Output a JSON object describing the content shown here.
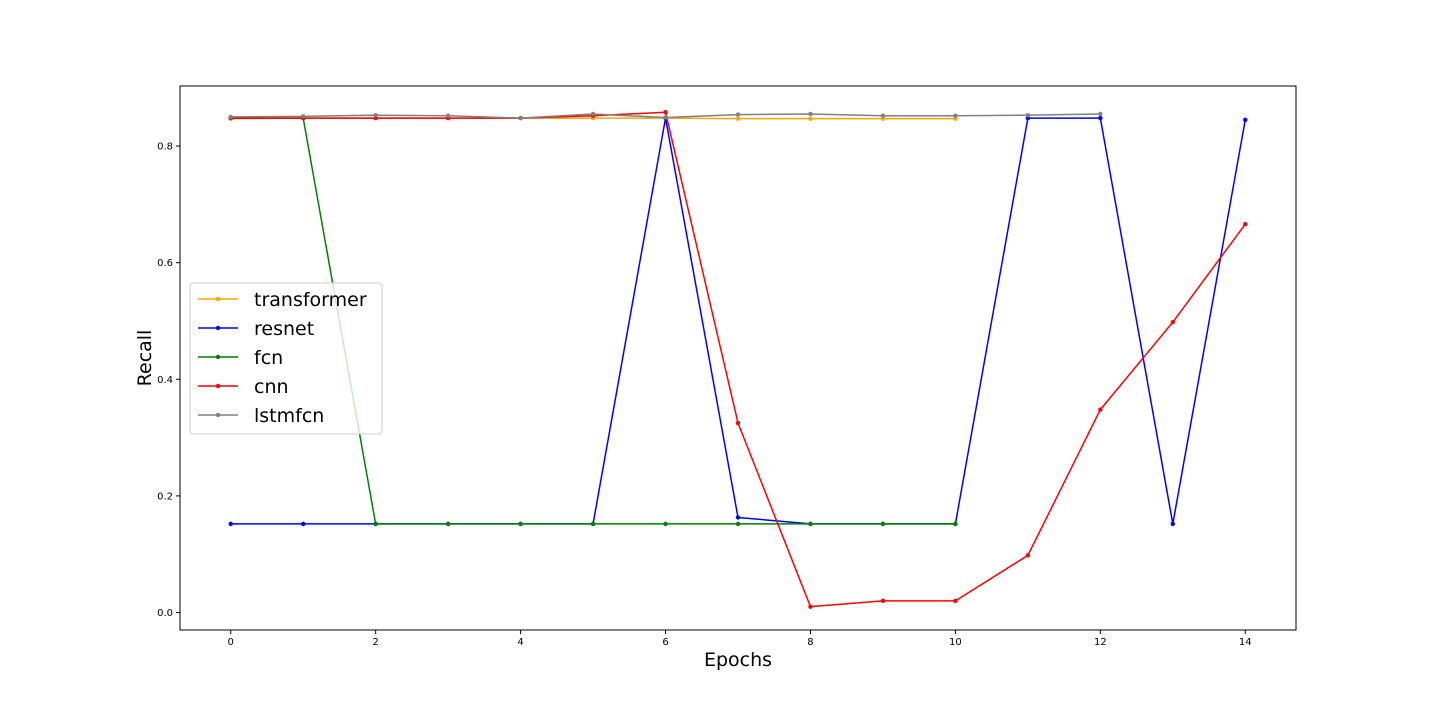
{
  "chart_data": {
    "type": "line",
    "title": "",
    "xlabel": "Epochs",
    "ylabel": "Recall",
    "xlim": [
      -0.7,
      14.7
    ],
    "ylim": [
      -0.03,
      0.903
    ],
    "xticks": [
      0,
      2,
      4,
      6,
      8,
      10,
      12,
      14
    ],
    "yticks": [
      0.0,
      0.2,
      0.4,
      0.6,
      0.8
    ],
    "ytick_labels": [
      "0.0",
      "0.2",
      "0.4",
      "0.6",
      "0.8"
    ],
    "grid": false,
    "legend_position": "center-left",
    "series": [
      {
        "name": "transformer",
        "color": "#ffa500",
        "x": [
          0,
          1,
          2,
          3,
          4,
          5,
          6,
          7,
          8,
          9,
          10
        ],
        "y": [
          0.847,
          0.848,
          0.848,
          0.848,
          0.848,
          0.848,
          0.848,
          0.847,
          0.847,
          0.847,
          0.847
        ]
      },
      {
        "name": "resnet",
        "color": "#0000ff",
        "x": [
          0,
          1,
          2,
          3,
          4,
          5,
          6,
          7,
          8,
          9,
          10,
          11,
          12,
          13,
          14
        ],
        "y": [
          0.152,
          0.152,
          0.152,
          0.152,
          0.152,
          0.152,
          0.848,
          0.163,
          0.152,
          0.152,
          0.152,
          0.848,
          0.848,
          0.152,
          0.845
        ]
      },
      {
        "name": "fcn",
        "color": "#008000",
        "x": [
          0,
          1,
          2,
          3,
          4,
          5,
          6,
          7,
          8,
          9,
          10
        ],
        "y": [
          0.848,
          0.848,
          0.152,
          0.152,
          0.152,
          0.152,
          0.152,
          0.152,
          0.152,
          0.152,
          0.152
        ]
      },
      {
        "name": "cnn",
        "color": "#ff0000",
        "x": [
          0,
          1,
          2,
          3,
          4,
          5,
          6,
          7,
          8,
          9,
          10,
          11,
          12,
          13,
          14
        ],
        "y": [
          0.848,
          0.848,
          0.848,
          0.848,
          0.848,
          0.852,
          0.858,
          0.325,
          0.01,
          0.02,
          0.02,
          0.098,
          0.348,
          0.498,
          0.666
        ]
      },
      {
        "name": "lstmfcn",
        "color": "#808080",
        "x": [
          0,
          1,
          2,
          3,
          4,
          5,
          6,
          7,
          8,
          9,
          10,
          11,
          12
        ],
        "y": [
          0.85,
          0.851,
          0.853,
          0.852,
          0.848,
          0.855,
          0.849,
          0.854,
          0.855,
          0.852,
          0.852,
          0.853,
          0.855
        ]
      }
    ]
  }
}
